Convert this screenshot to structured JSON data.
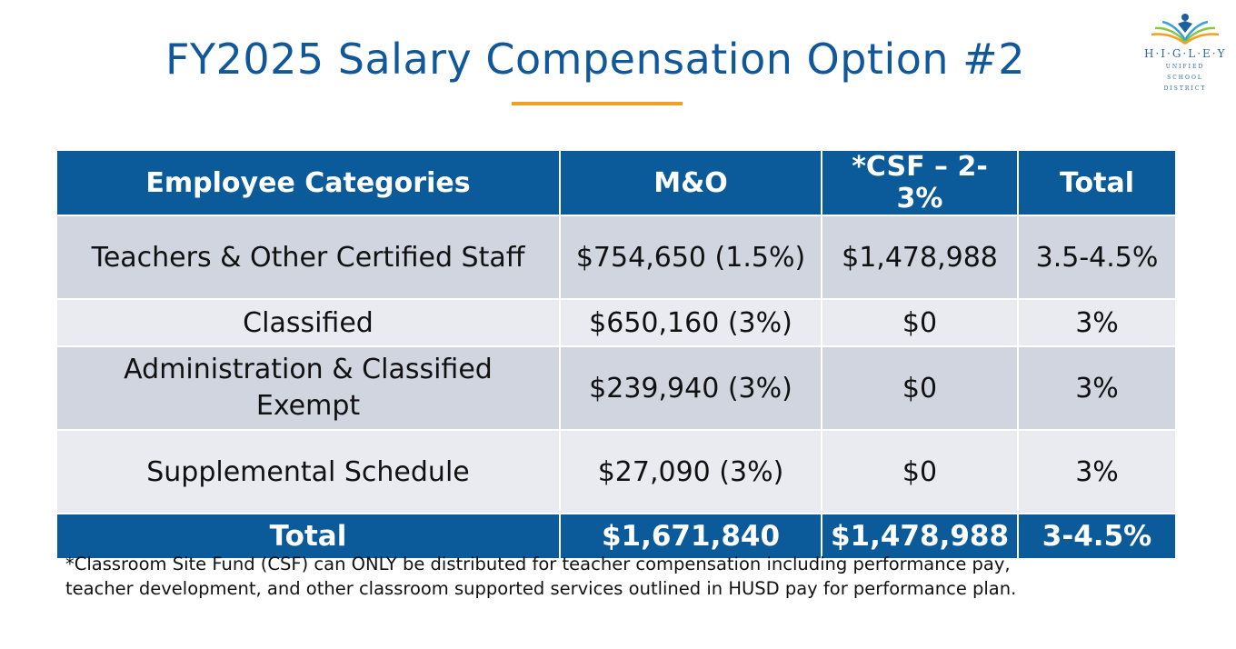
{
  "title": "FY2025 Salary Compensation Option #2",
  "logo": {
    "word": "H·I·G·L·E·Y",
    "line1": "UNIFIED",
    "line2": "SCHOOL",
    "line3": "DISTRICT"
  },
  "table": {
    "headers": [
      "Employee Categories",
      "M&O",
      "*CSF – 2-3%",
      "Total"
    ],
    "rows": [
      [
        "Teachers & Other Certified Staff",
        "$754,650 (1.5%)",
        "$1,478,988",
        "3.5-4.5%"
      ],
      [
        "Classified",
        "$650,160 (3%)",
        "$0",
        "3%"
      ],
      [
        "Administration & Classified Exempt",
        "$239,940 (3%)",
        "$0",
        "3%"
      ],
      [
        "Supplemental Schedule",
        "$27,090 (3%)",
        "$0",
        "3%"
      ]
    ],
    "total": [
      "Total",
      "$1,671,840",
      "$1,478,988",
      "3-4.5%"
    ]
  },
  "footnote": "*Classroom Site Fund (CSF) can ONLY be distributed for teacher compensation including performance pay, teacher development, and other classroom supported services outlined in HUSD pay for performance plan.",
  "colors": {
    "header_blue": "#0b5a99",
    "title_blue": "#11589a",
    "accent_orange": "#f2a024",
    "row_dark": "#d0d5df",
    "row_light": "#e9ebf0"
  }
}
